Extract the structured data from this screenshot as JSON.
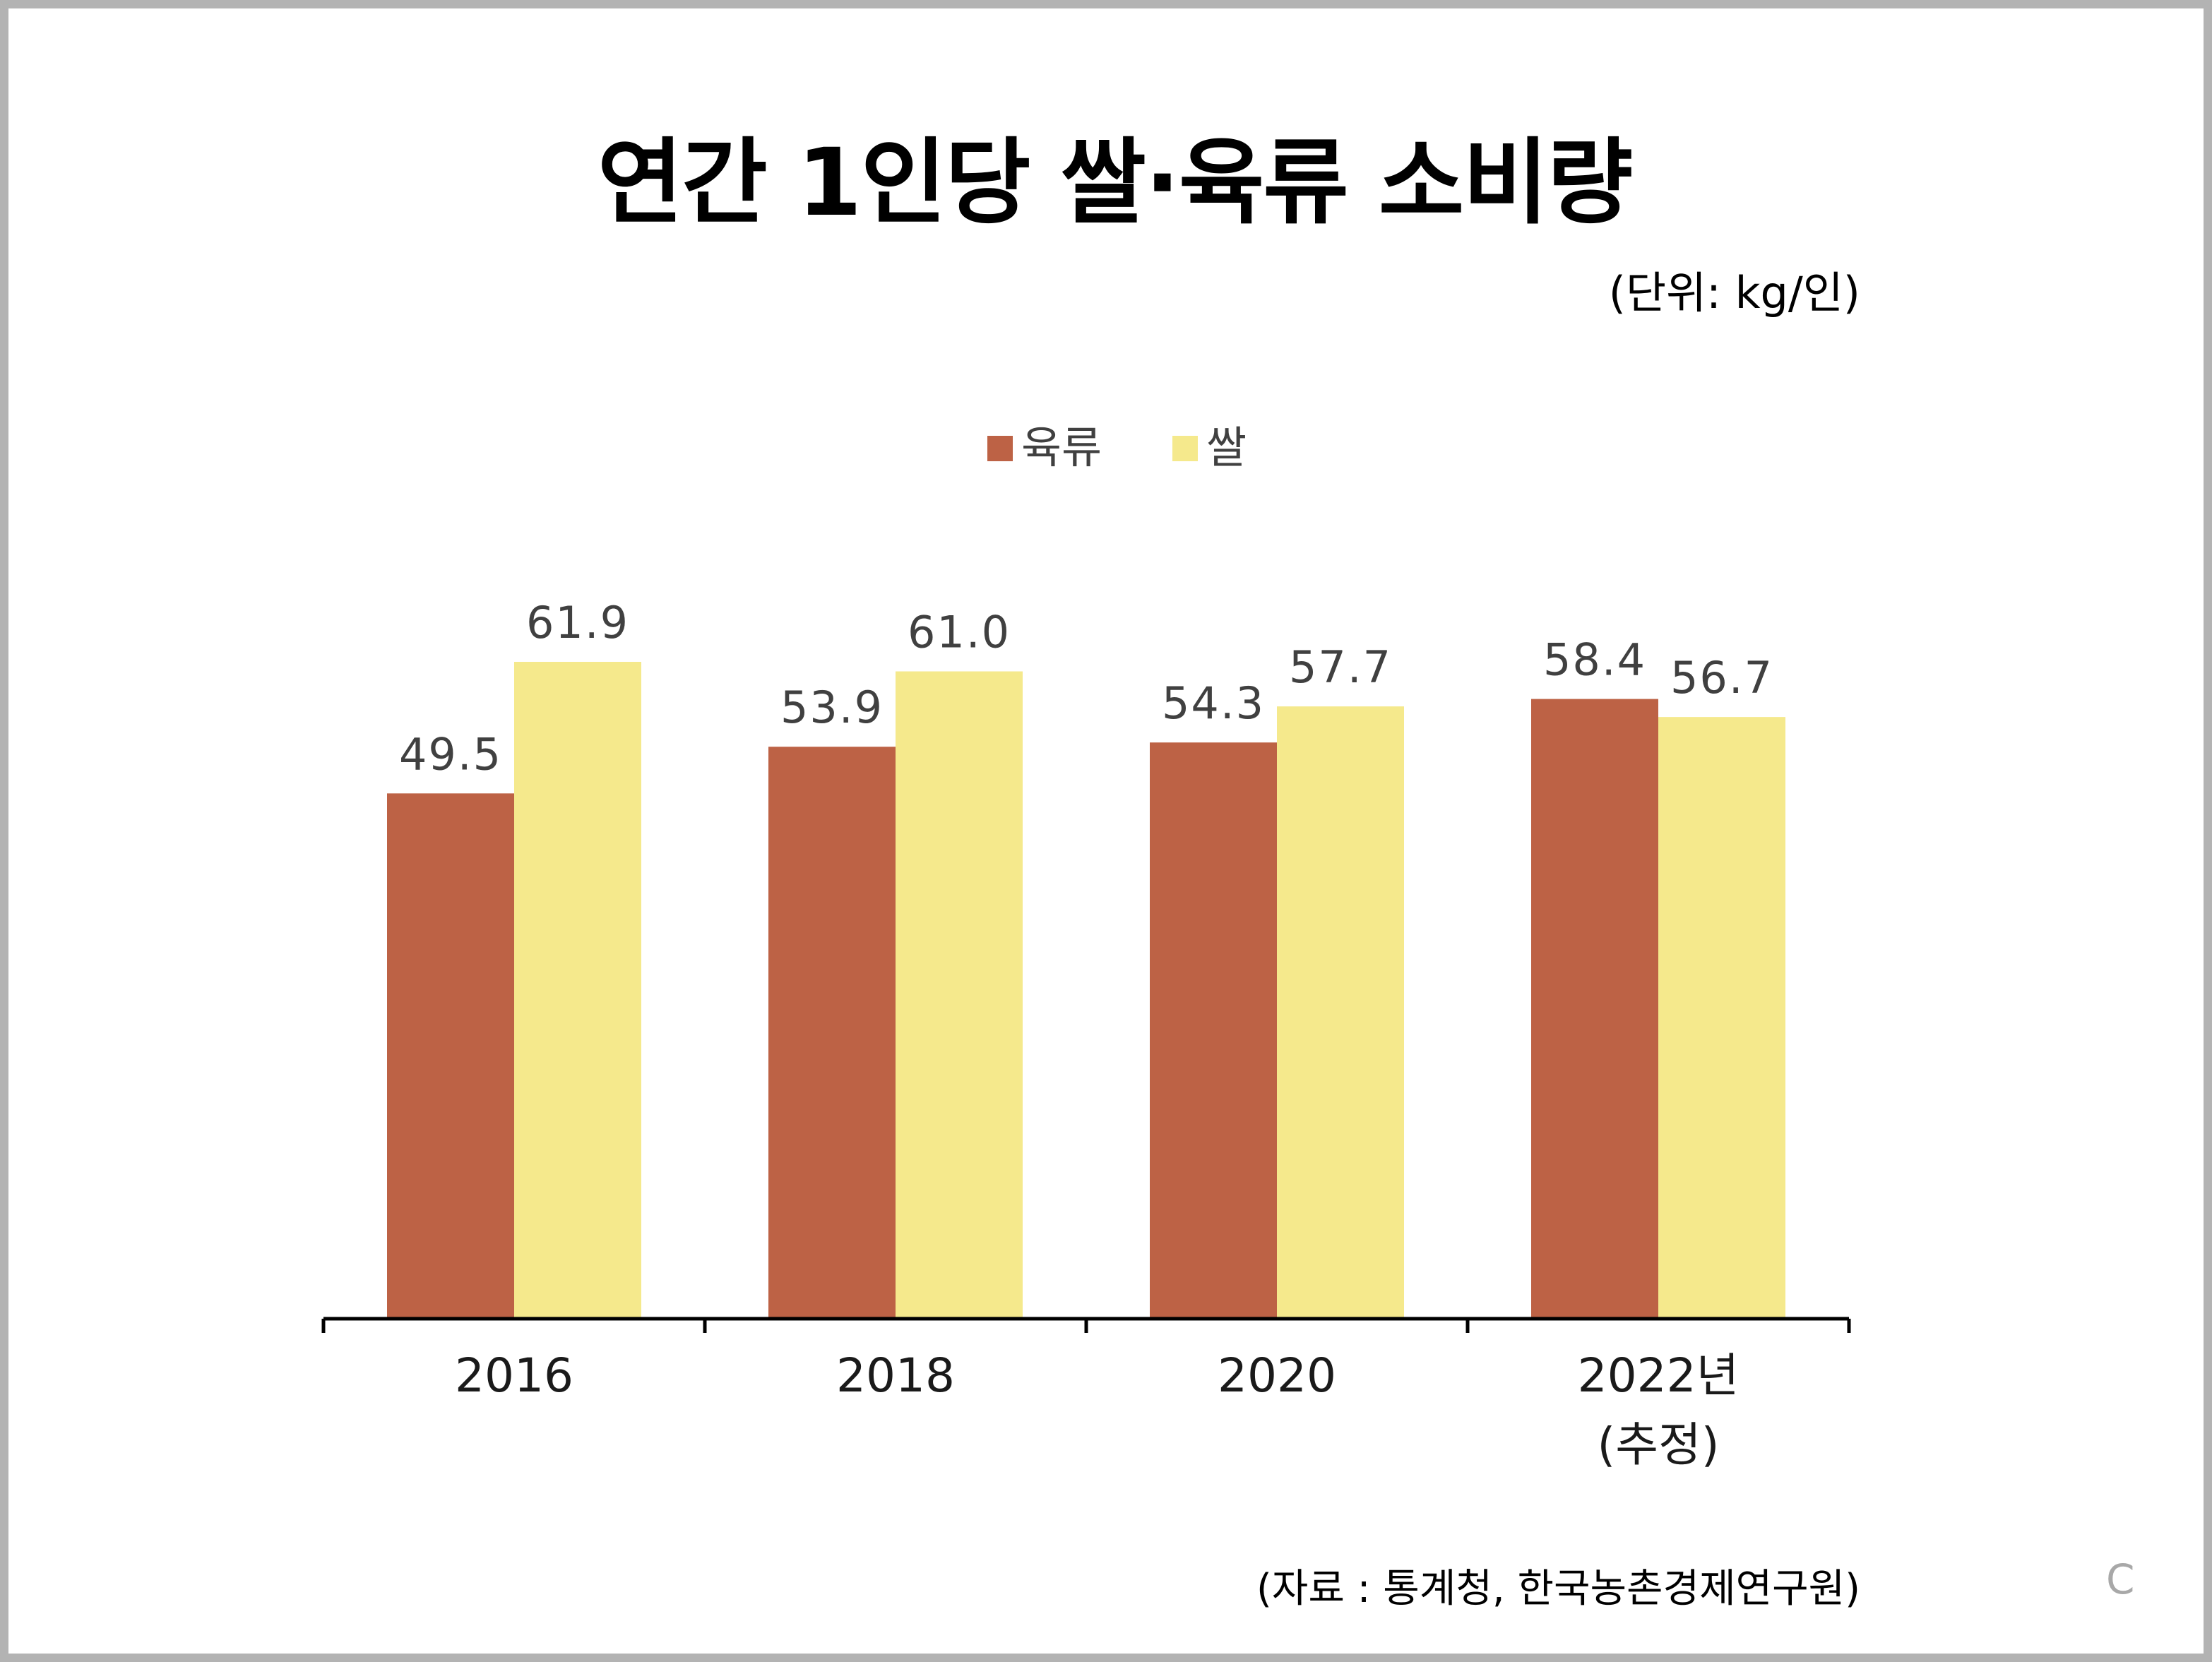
{
  "title": "연간 1인당 쌀·육류 소비량",
  "unit_note": "(단위: kg/인)",
  "source_note": "(자료 : 통계청, 한국농촌경제연구원)",
  "corner_mark": "C",
  "chart_data": {
    "type": "bar",
    "categories": [
      [
        "2016"
      ],
      [
        "2018"
      ],
      [
        "2020"
      ],
      [
        "2022년",
        "(추정)"
      ]
    ],
    "series": [
      {
        "name": "육류",
        "color": "#bd6245",
        "values": [
          49.5,
          53.9,
          54.3,
          58.4
        ],
        "labels": [
          "49.5",
          "53.9",
          "54.3",
          "58.4"
        ]
      },
      {
        "name": "쌀",
        "color": "#f5e98c",
        "values": [
          61.9,
          61.0,
          57.7,
          56.7
        ],
        "labels": [
          "61.9",
          "61.0",
          "57.7",
          "56.7"
        ]
      }
    ],
    "ylim": [
      0,
      62
    ],
    "legend_position": "top-center",
    "grid": false
  }
}
